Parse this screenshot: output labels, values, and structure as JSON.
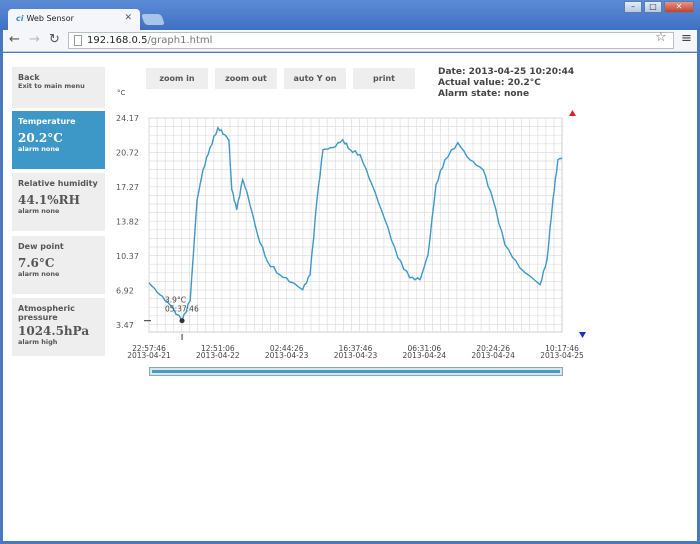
{
  "browser": {
    "tab_title": "Web Sensor",
    "url_host": "192.168.0.5",
    "url_path": "/graph1.html"
  },
  "sidebar": [
    {
      "title": "Back",
      "value": "",
      "alarm": "Exit to main menu"
    },
    {
      "title": "Temperature",
      "value": "20.2°C",
      "alarm": "alarm none",
      "active": true
    },
    {
      "title": "Relative humidity",
      "value": "44.1%RH",
      "alarm": "alarm none"
    },
    {
      "title": "Dew point",
      "value": "7.6°C",
      "alarm": "alarm none"
    },
    {
      "title": "Atmospheric pressure",
      "value": "1024.5hPa",
      "alarm": "alarm high"
    }
  ],
  "buttons": {
    "zoom_in": "zoom in",
    "zoom_out": "zoom out",
    "auto_y": "auto Y on",
    "print": "print"
  },
  "info": {
    "date": "Date: 2013-04-25 10:20:44",
    "actual": "Actual value: 20.2°C",
    "alarm": "Alarm state: none"
  },
  "colors": {
    "accent": "#3d98c8",
    "line": "#3d98c8",
    "alarm_high": "#e02020",
    "alarm_low": "#2030c0"
  },
  "chart_data": {
    "type": "line",
    "ylabel": "°C",
    "y_ticks": [
      "24.17",
      "20.72",
      "17.27",
      "13.82",
      "10.37",
      "6.92",
      "3.47"
    ],
    "ylim": [
      2.77,
      24.17
    ],
    "xlim": [
      "2013-04-21 22:57:46",
      "2013-04-25 10:17:46"
    ],
    "x_ticks": [
      [
        "22:57:46",
        "2013-04-21"
      ],
      [
        "12:51:06",
        "2013-04-22"
      ],
      [
        "02:44:26",
        "2013-04-23"
      ],
      [
        "16:37:46",
        "2013-04-23"
      ],
      [
        "06:31:06",
        "2013-04-24"
      ],
      [
        "20:24:26",
        "2013-04-24"
      ],
      [
        "10:17:46",
        "2013-04-25"
      ]
    ],
    "grid": true,
    "min_marker": {
      "label_value": "3.9°C",
      "label_time": "05:37:46",
      "x": "2013-04-22 05:37:46",
      "y": 3.9
    },
    "series": [
      {
        "points": [
          [
            "2013-04-21 22:58",
            7.7
          ],
          [
            "2013-04-22 01:10",
            6.5
          ],
          [
            "2013-04-22 03:10",
            5.5
          ],
          [
            "2013-04-22 05:38",
            3.9
          ],
          [
            "2013-04-22 07:16",
            5.9
          ],
          [
            "2013-04-22 08:40",
            16.0
          ],
          [
            "2013-04-22 09:52",
            19.0
          ],
          [
            "2013-04-22 11:16",
            21.2
          ],
          [
            "2013-04-22 12:52",
            23.2
          ],
          [
            "2013-04-22 14:16",
            22.5
          ],
          [
            "2013-04-22 15:04",
            22.0
          ],
          [
            "2013-04-22 15:40",
            17.0
          ],
          [
            "2013-04-22 16:40",
            15.0
          ],
          [
            "2013-04-22 17:52",
            18.0
          ],
          [
            "2013-04-22 18:52",
            16.5
          ],
          [
            "2013-04-22 20:52",
            12.5
          ],
          [
            "2013-04-22 22:52",
            9.8
          ],
          [
            "2013-04-23 01:22",
            8.5
          ],
          [
            "2013-04-23 03:58",
            7.7
          ],
          [
            "2013-04-23 05:58",
            7.0
          ],
          [
            "2013-04-23 07:28",
            8.5
          ],
          [
            "2013-04-23 08:52",
            16.0
          ],
          [
            "2013-04-23 10:04",
            21.0
          ],
          [
            "2013-04-23 12:04",
            21.2
          ],
          [
            "2013-04-23 14:04",
            22.0
          ],
          [
            "2013-04-23 15:34",
            21.0
          ],
          [
            "2013-04-23 17:34",
            20.5
          ],
          [
            "2013-04-23 19:58",
            17.5
          ],
          [
            "2013-04-23 22:34",
            14.0
          ],
          [
            "2013-04-24 01:10",
            10.2
          ],
          [
            "2013-04-24 03:34",
            8.2
          ],
          [
            "2013-04-24 05:40",
            8.0
          ],
          [
            "2013-04-24 07:16",
            10.5
          ],
          [
            "2013-04-24 08:52",
            17.5
          ],
          [
            "2013-04-24 10:40",
            20.0
          ],
          [
            "2013-04-24 13:16",
            21.7
          ],
          [
            "2013-04-24 15:40",
            20.0
          ],
          [
            "2013-04-24 18:22",
            19.0
          ],
          [
            "2013-04-24 20:22",
            16.0
          ],
          [
            "2013-04-24 22:46",
            11.5
          ],
          [
            "2013-04-25 01:46",
            9.2
          ],
          [
            "2013-04-25 05:52",
            7.5
          ],
          [
            "2013-04-25 07:16",
            10.0
          ],
          [
            "2013-04-25 08:28",
            16.0
          ],
          [
            "2013-04-25 09:28",
            20.0
          ],
          [
            "2013-04-25 10:18",
            20.2
          ]
        ]
      }
    ]
  }
}
